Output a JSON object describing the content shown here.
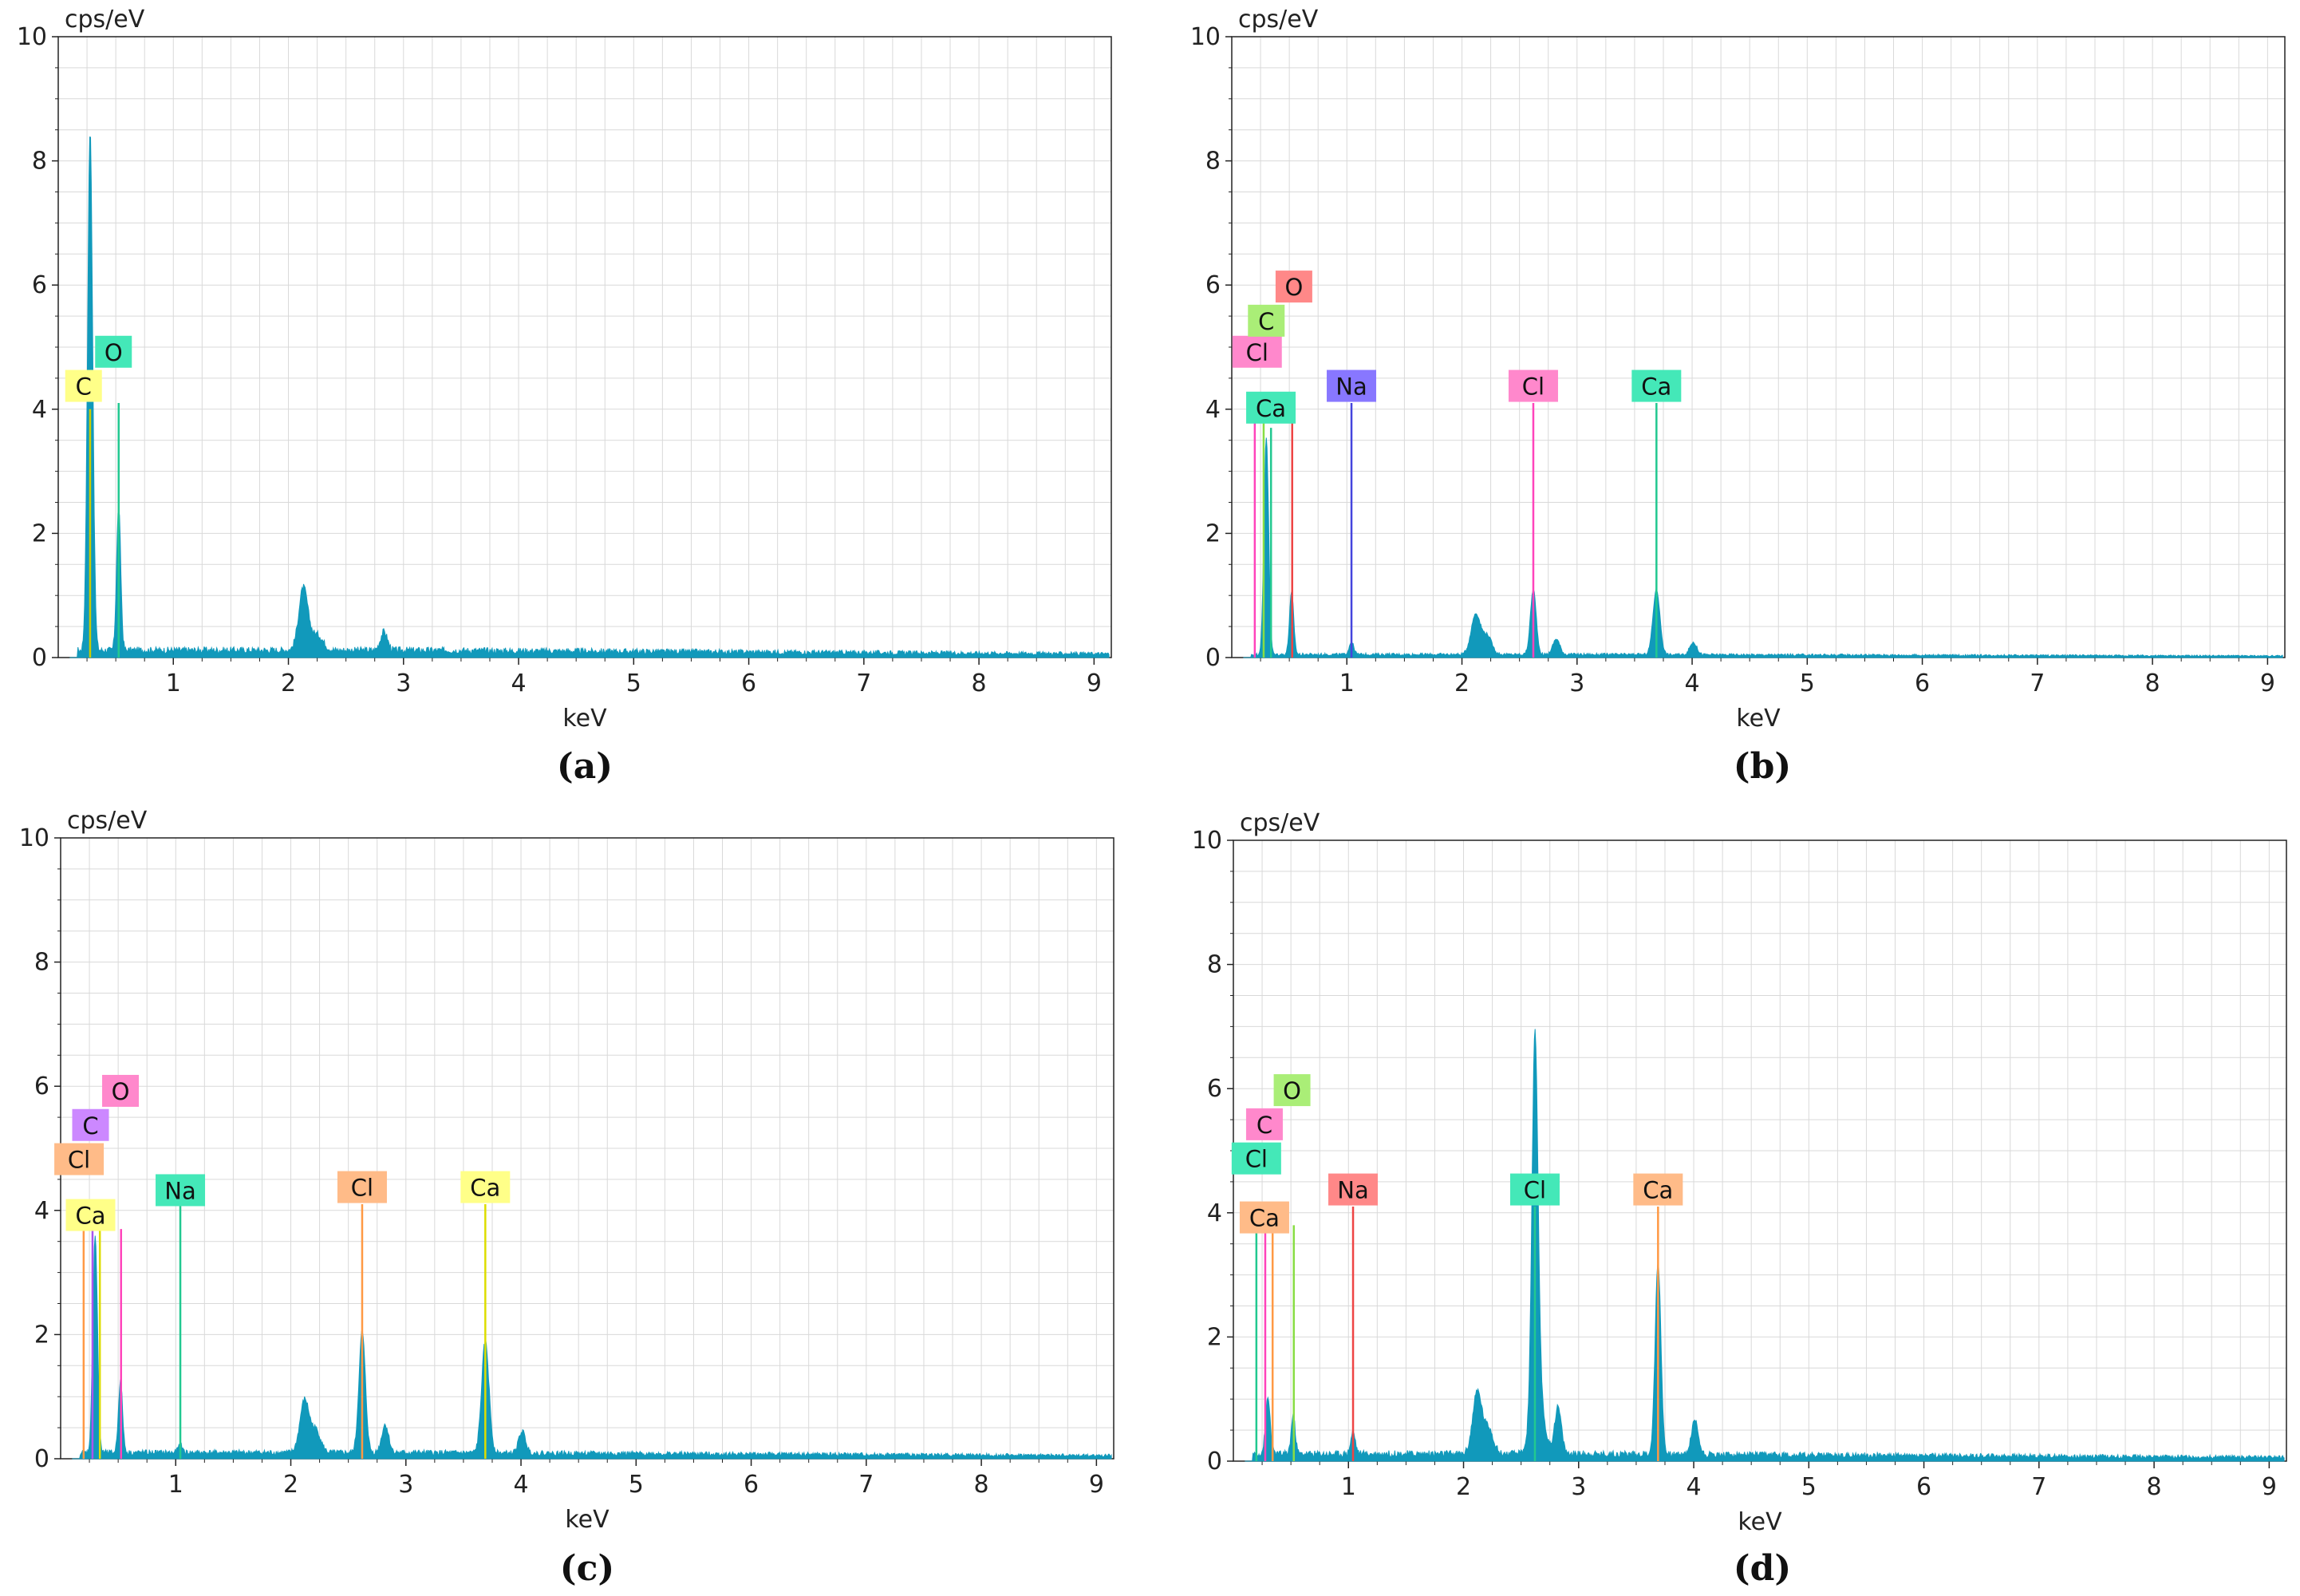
{
  "figure": {
    "background": "#ffffff",
    "spectrum_color": "#1199bb",
    "grid_color": "#d9d9d9"
  },
  "chart_data": [
    {
      "type": "area",
      "caption": "(a)",
      "ylabel": "cps/eV",
      "xlabel": "keV",
      "xlim": [
        0,
        9.15
      ],
      "ylim": [
        0,
        10
      ],
      "x_ticks": [
        "1",
        "2",
        "3",
        "4",
        "5",
        "6",
        "7",
        "8",
        "9"
      ],
      "y_ticks": [
        "0",
        "2",
        "4",
        "6",
        "8",
        "10"
      ],
      "grid": true,
      "peaks": [
        {
          "x": 0.277,
          "y": 8.35,
          "w": 0.022
        },
        {
          "x": 0.525,
          "y": 2.3,
          "w": 0.018
        },
        {
          "x": 2.13,
          "y": 1.0,
          "w": 0.04
        },
        {
          "x": 2.25,
          "y": 0.25,
          "w": 0.05
        },
        {
          "x": 2.83,
          "y": 0.3,
          "w": 0.03
        }
      ],
      "background_level": 0.12,
      "element_lines": [
        {
          "label": "C",
          "energy": 0.277,
          "height": 4.0,
          "label_y": 4.35,
          "label_x": 0.22,
          "color": "#ffff88",
          "line_color": "#cccc00"
        },
        {
          "label": "O",
          "energy": 0.525,
          "height": 4.1,
          "label_y": 4.9,
          "label_x": 0.48,
          "color": "#44e8b8",
          "line_color": "#22c890"
        }
      ]
    },
    {
      "type": "area",
      "caption": "(b)",
      "ylabel": "cps/eV",
      "xlabel": "keV",
      "xlim": [
        0,
        9.15
      ],
      "ylim": [
        0,
        10
      ],
      "x_ticks": [
        "1",
        "2",
        "3",
        "4",
        "5",
        "6",
        "7",
        "8",
        "9"
      ],
      "y_ticks": [
        "0",
        "2",
        "4",
        "6",
        "8",
        "10"
      ],
      "grid": true,
      "peaks": [
        {
          "x": 0.3,
          "y": 3.5,
          "w": 0.02
        },
        {
          "x": 0.52,
          "y": 1.0,
          "w": 0.018
        },
        {
          "x": 1.04,
          "y": 0.2,
          "w": 0.02
        },
        {
          "x": 2.12,
          "y": 0.65,
          "w": 0.04
        },
        {
          "x": 2.22,
          "y": 0.3,
          "w": 0.04
        },
        {
          "x": 2.62,
          "y": 1.05,
          "w": 0.025
        },
        {
          "x": 2.82,
          "y": 0.25,
          "w": 0.03
        },
        {
          "x": 3.69,
          "y": 1.05,
          "w": 0.03
        },
        {
          "x": 4.01,
          "y": 0.2,
          "w": 0.03
        }
      ],
      "background_level": 0.05,
      "element_lines": [
        {
          "label": "Cl",
          "energy": 0.2,
          "height": 3.9,
          "label_y": 4.9,
          "label_x": 0.22,
          "color": "#ff88cc",
          "line_color": "#ff44bb"
        },
        {
          "label": "C",
          "energy": 0.277,
          "height": 4.0,
          "label_y": 5.4,
          "label_x": 0.3,
          "color": "#aaee77",
          "line_color": "#88dd44"
        },
        {
          "label": "O",
          "energy": 0.525,
          "height": 3.9,
          "label_y": 5.95,
          "label_x": 0.54,
          "color": "#ff8888",
          "line_color": "#ee4444"
        },
        {
          "label": "Ca",
          "energy": 0.341,
          "height": 3.7,
          "label_y": 4.0,
          "label_x": 0.34,
          "color": "#44e8b8",
          "line_color": "#22c890"
        },
        {
          "label": "Na",
          "energy": 1.04,
          "height": 4.1,
          "label_y": 4.35,
          "label_x": 1.04,
          "color": "#8877ff",
          "line_color": "#4444dd"
        },
        {
          "label": "Cl",
          "energy": 2.62,
          "height": 4.1,
          "label_y": 4.35,
          "label_x": 2.62,
          "color": "#ff88cc",
          "line_color": "#ff44bb"
        },
        {
          "label": "Ca",
          "energy": 3.69,
          "height": 4.1,
          "label_y": 4.35,
          "label_x": 3.69,
          "color": "#44e8b8",
          "line_color": "#22c890"
        }
      ]
    },
    {
      "type": "area",
      "caption": "(c)",
      "ylabel": "cps/eV",
      "xlabel": "keV",
      "xlim": [
        0,
        9.15
      ],
      "ylim": [
        0,
        10
      ],
      "x_ticks": [
        "1",
        "2",
        "3",
        "4",
        "5",
        "6",
        "7",
        "8",
        "9"
      ],
      "y_ticks": [
        "0",
        "2",
        "4",
        "6",
        "8",
        "10"
      ],
      "grid": true,
      "peaks": [
        {
          "x": 0.3,
          "y": 3.5,
          "w": 0.02
        },
        {
          "x": 0.52,
          "y": 1.15,
          "w": 0.018
        },
        {
          "x": 1.04,
          "y": 0.12,
          "w": 0.02
        },
        {
          "x": 2.12,
          "y": 0.85,
          "w": 0.04
        },
        {
          "x": 2.22,
          "y": 0.35,
          "w": 0.04
        },
        {
          "x": 2.62,
          "y": 1.95,
          "w": 0.028
        },
        {
          "x": 2.82,
          "y": 0.45,
          "w": 0.03
        },
        {
          "x": 3.69,
          "y": 1.8,
          "w": 0.032
        },
        {
          "x": 4.01,
          "y": 0.35,
          "w": 0.03
        }
      ],
      "background_level": 0.1,
      "element_lines": [
        {
          "label": "Cl",
          "energy": 0.2,
          "height": 3.7,
          "label_y": 4.8,
          "label_x": 0.16,
          "color": "#ffbb88",
          "line_color": "#ff9944"
        },
        {
          "label": "C",
          "energy": 0.277,
          "height": 3.9,
          "label_y": 5.35,
          "label_x": 0.26,
          "color": "#cc88ff",
          "line_color": "#aa55ee"
        },
        {
          "label": "O",
          "energy": 0.525,
          "height": 3.7,
          "label_y": 5.9,
          "label_x": 0.52,
          "color": "#ff88cc",
          "line_color": "#ff44bb"
        },
        {
          "label": "Ca",
          "energy": 0.341,
          "height": 3.7,
          "label_y": 3.9,
          "label_x": 0.26,
          "color": "#ffff88",
          "line_color": "#dddd00"
        },
        {
          "label": "Na",
          "energy": 1.04,
          "height": 4.1,
          "label_y": 4.3,
          "label_x": 1.04,
          "color": "#44e8b8",
          "line_color": "#22c890"
        },
        {
          "label": "Cl",
          "energy": 2.62,
          "height": 4.1,
          "label_y": 4.35,
          "label_x": 2.62,
          "color": "#ffbb88",
          "line_color": "#ff9944"
        },
        {
          "label": "Ca",
          "energy": 3.69,
          "height": 4.1,
          "label_y": 4.35,
          "label_x": 3.69,
          "color": "#ffff88",
          "line_color": "#dddd00"
        }
      ]
    },
    {
      "type": "area",
      "caption": "(d)",
      "ylabel": "cps/eV",
      "xlabel": "keV",
      "xlim": [
        0,
        9.15
      ],
      "ylim": [
        0,
        10
      ],
      "x_ticks": [
        "1",
        "2",
        "3",
        "4",
        "5",
        "6",
        "7",
        "8",
        "9"
      ],
      "y_ticks": [
        "0",
        "2",
        "4",
        "6",
        "8",
        "10"
      ],
      "grid": true,
      "peaks": [
        {
          "x": 0.3,
          "y": 0.9,
          "w": 0.02
        },
        {
          "x": 0.52,
          "y": 0.6,
          "w": 0.018
        },
        {
          "x": 1.04,
          "y": 0.35,
          "w": 0.02
        },
        {
          "x": 2.12,
          "y": 1.0,
          "w": 0.04
        },
        {
          "x": 2.22,
          "y": 0.4,
          "w": 0.04
        },
        {
          "x": 2.62,
          "y": 5.7,
          "w": 0.025
        },
        {
          "x": 2.64,
          "y": 1.2,
          "w": 0.05
        },
        {
          "x": 2.82,
          "y": 0.75,
          "w": 0.03
        },
        {
          "x": 3.69,
          "y": 3.1,
          "w": 0.025
        },
        {
          "x": 4.01,
          "y": 0.55,
          "w": 0.03
        }
      ],
      "background_level": 0.12,
      "element_lines": [
        {
          "label": "Cl",
          "energy": 0.2,
          "height": 3.7,
          "label_y": 4.85,
          "label_x": 0.2,
          "color": "#44e8b8",
          "line_color": "#22c890"
        },
        {
          "label": "C",
          "energy": 0.277,
          "height": 3.8,
          "label_y": 5.4,
          "label_x": 0.27,
          "color": "#ff88cc",
          "line_color": "#ff44bb"
        },
        {
          "label": "O",
          "energy": 0.525,
          "height": 3.8,
          "label_y": 5.95,
          "label_x": 0.51,
          "color": "#aaee77",
          "line_color": "#88dd44"
        },
        {
          "label": "Ca",
          "energy": 0.341,
          "height": 3.7,
          "label_y": 3.9,
          "label_x": 0.27,
          "color": "#ffbb88",
          "line_color": "#ff9944"
        },
        {
          "label": "Na",
          "energy": 1.04,
          "height": 4.1,
          "label_y": 4.35,
          "label_x": 1.04,
          "color": "#ff8888",
          "line_color": "#ee4444"
        },
        {
          "label": "Cl",
          "energy": 2.62,
          "height": 4.1,
          "label_y": 4.35,
          "label_x": 2.62,
          "color": "#44e8b8",
          "line_color": "#22c890"
        },
        {
          "label": "Ca",
          "energy": 3.69,
          "height": 4.1,
          "label_y": 4.35,
          "label_x": 3.69,
          "color": "#ffbb88",
          "line_color": "#ff9944"
        }
      ]
    }
  ]
}
